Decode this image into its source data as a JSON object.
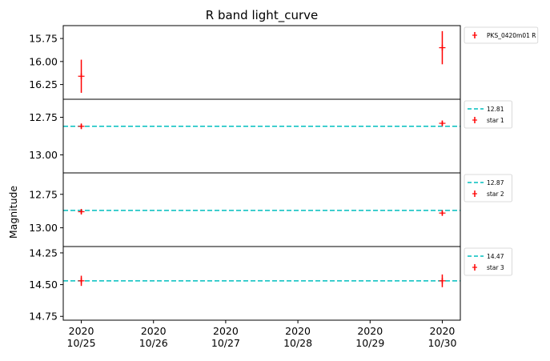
{
  "chart_data": {
    "type": "scatter",
    "title": "R band light_curve",
    "ylabel": "Magnitude",
    "x_dates": [
      "2020-10-25",
      "2020-10-26",
      "2020-10-27",
      "2020-10-28",
      "2020-10-29",
      "2020-10-30"
    ],
    "x_tick_labels": [
      [
        "2020",
        "10/25"
      ],
      [
        "2020",
        "10/26"
      ],
      [
        "2020",
        "10/27"
      ],
      [
        "2020",
        "10/28"
      ],
      [
        "2020",
        "10/29"
      ],
      [
        "2020",
        "10/30"
      ]
    ],
    "xlim": [
      "2020-10-24T18:00",
      "2020-10-30T06:00"
    ],
    "colors": {
      "points": "#ff0000",
      "reference_line": "#00bfbf"
    },
    "panels": [
      {
        "ylim": [
          15.61,
          16.41
        ],
        "inverted": true,
        "y_ticks": [
          15.75,
          16.0,
          16.25
        ],
        "y_tick_labels": [
          "15.75",
          "16.00",
          "16.25"
        ],
        "series": [
          {
            "name": "PKS_0420m01 R",
            "points": [
              {
                "x": "2020-10-25",
                "y": 16.16,
                "err": 0.18
              },
              {
                "x": "2020-10-30",
                "y": 15.85,
                "err": 0.18
              }
            ]
          }
        ],
        "reference_line": null
      },
      {
        "ylim": [
          12.63,
          13.12
        ],
        "inverted": true,
        "y_ticks": [
          12.75,
          13.0
        ],
        "y_tick_labels": [
          "12.75",
          "13.00"
        ],
        "series": [
          {
            "name": "star 1",
            "points": [
              {
                "x": "2020-10-25",
                "y": 12.81,
                "err": 0.015
              },
              {
                "x": "2020-10-30",
                "y": 12.79,
                "err": 0.015
              }
            ]
          }
        ],
        "reference_line": {
          "label": "12.81",
          "y": 12.81
        }
      },
      {
        "ylim": [
          12.59,
          13.14
        ],
        "inverted": true,
        "y_ticks": [
          12.75,
          13.0
        ],
        "y_tick_labels": [
          "12.75",
          "13.00"
        ],
        "series": [
          {
            "name": "star 2",
            "points": [
              {
                "x": "2020-10-25",
                "y": 12.88,
                "err": 0.015
              },
              {
                "x": "2020-10-30",
                "y": 12.89,
                "err": 0.015
              }
            ]
          }
        ],
        "reference_line": {
          "label": "12.87",
          "y": 12.87
        }
      },
      {
        "ylim": [
          14.2,
          14.78
        ],
        "inverted": true,
        "y_ticks": [
          14.25,
          14.5,
          14.75
        ],
        "y_tick_labels": [
          "14.25",
          "14.50",
          "14.75"
        ],
        "series": [
          {
            "name": "star 3",
            "points": [
              {
                "x": "2020-10-25",
                "y": 14.47,
                "err": 0.04
              },
              {
                "x": "2020-10-30",
                "y": 14.47,
                "err": 0.05
              }
            ]
          }
        ],
        "reference_line": {
          "label": "14.47",
          "y": 14.47
        }
      }
    ]
  }
}
